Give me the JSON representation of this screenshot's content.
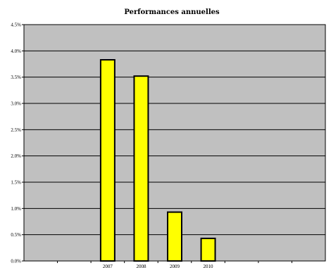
{
  "chart_data": {
    "type": "bar",
    "title": "Performances annuelles",
    "categories": [
      "",
      "",
      "2007",
      "2008",
      "2009",
      "2010",
      "",
      "",
      ""
    ],
    "values": [
      null,
      null,
      3.83,
      3.52,
      0.93,
      0.43,
      null,
      null,
      null
    ],
    "yticks": [
      "0.0%",
      "0.5%",
      "1.0%",
      "1.5%",
      "2.0%",
      "2.5%",
      "3.0%",
      "3.5%",
      "4.0%",
      "4.5%"
    ],
    "ylim": [
      0,
      4.5
    ],
    "grid": true,
    "legend": "none",
    "colors": {
      "bar": "#ffff00",
      "bar_border": "#000000",
      "plot_bg": "#c0c0c0",
      "grid": "#000000"
    }
  }
}
